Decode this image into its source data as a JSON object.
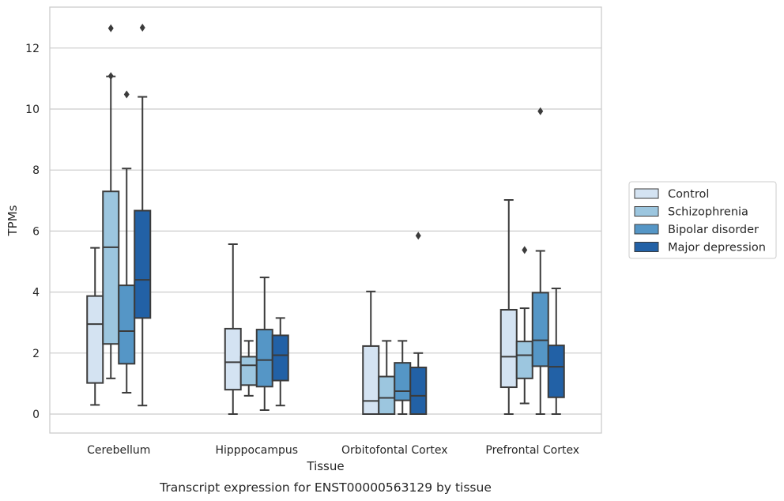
{
  "chart_data": {
    "type": "box",
    "caption": "Transcript expression for ENST00000563129 by tissue",
    "xlabel": "Tissue",
    "ylabel": "TPMs",
    "ylim": [
      -0.6,
      13.3
    ],
    "yticks": [
      0,
      2,
      4,
      6,
      8,
      10,
      12
    ],
    "grid": "horizontal",
    "legend_position": "right",
    "categories": [
      "Cerebellum",
      "Hipppocampus",
      "Orbitofontal Cortex",
      "Prefrontal Cortex"
    ],
    "series": [
      {
        "name": "Control",
        "color": "#d4e3f2",
        "boxes": [
          {
            "whislo": 0.3,
            "q1": 1.02,
            "med": 2.95,
            "q3": 3.87,
            "whishi": 5.45,
            "fliers": []
          },
          {
            "whislo": 0.0,
            "q1": 0.8,
            "med": 1.7,
            "q3": 2.8,
            "whishi": 5.57,
            "fliers": []
          },
          {
            "whislo": 0.0,
            "q1": 0.0,
            "med": 0.43,
            "q3": 2.23,
            "whishi": 4.02,
            "fliers": []
          },
          {
            "whislo": 0.0,
            "q1": 0.88,
            "med": 1.88,
            "q3": 3.42,
            "whishi": 7.02,
            "fliers": []
          }
        ]
      },
      {
        "name": "Schizophrenia",
        "color": "#9cc6df",
        "boxes": [
          {
            "whislo": 1.17,
            "q1": 2.3,
            "med": 5.47,
            "q3": 7.3,
            "whishi": 11.07,
            "fliers": [
              11.08,
              12.65
            ]
          },
          {
            "whislo": 0.6,
            "q1": 0.95,
            "med": 1.6,
            "q3": 1.88,
            "whishi": 2.4,
            "fliers": []
          },
          {
            "whislo": 0.0,
            "q1": 0.0,
            "med": 0.53,
            "q3": 1.23,
            "whishi": 2.4,
            "fliers": []
          },
          {
            "whislo": 0.35,
            "q1": 1.17,
            "med": 1.93,
            "q3": 2.38,
            "whishi": 3.47,
            "fliers": [
              5.38
            ]
          }
        ]
      },
      {
        "name": "Bipolar disorder",
        "color": "#5596c6",
        "boxes": [
          {
            "whislo": 0.7,
            "q1": 1.65,
            "med": 2.72,
            "q3": 4.22,
            "whishi": 8.05,
            "fliers": [
              10.48
            ]
          },
          {
            "whislo": 0.13,
            "q1": 0.9,
            "med": 1.77,
            "q3": 2.77,
            "whishi": 4.48,
            "fliers": []
          },
          {
            "whislo": 0.0,
            "q1": 0.45,
            "med": 0.75,
            "q3": 1.68,
            "whishi": 2.4,
            "fliers": []
          },
          {
            "whislo": 0.0,
            "q1": 1.57,
            "med": 2.42,
            "q3": 3.98,
            "whishi": 5.35,
            "fliers": [
              9.93
            ]
          }
        ]
      },
      {
        "name": "Major depression",
        "color": "#2261a6",
        "boxes": [
          {
            "whislo": 0.28,
            "q1": 3.15,
            "med": 4.4,
            "q3": 6.67,
            "whishi": 10.4,
            "fliers": [
              12.67
            ]
          },
          {
            "whislo": 0.28,
            "q1": 1.1,
            "med": 1.93,
            "q3": 2.58,
            "whishi": 3.15,
            "fliers": []
          },
          {
            "whislo": 0.0,
            "q1": 0.0,
            "med": 0.6,
            "q3": 1.53,
            "whishi": 2.0,
            "fliers": [
              5.85
            ]
          },
          {
            "whislo": 0.0,
            "q1": 0.55,
            "med": 1.55,
            "q3": 2.25,
            "whishi": 4.12,
            "fliers": []
          }
        ]
      }
    ]
  }
}
